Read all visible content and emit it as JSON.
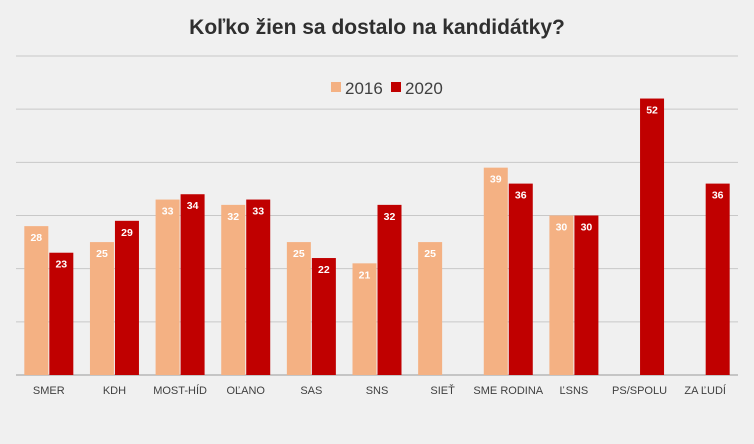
{
  "chart_data": {
    "type": "bar",
    "title": "Koľko žien sa dostalo na kandidátky?",
    "xlabel": "",
    "ylabel": "",
    "categories": [
      "SMER",
      "KDH",
      "MOST-HÍD",
      "OĽANO",
      "SAS",
      "SNS",
      "SIEŤ",
      "SME RODINA",
      "ĽSNS",
      "PS/SPOLU",
      "ZA ĽUDÍ"
    ],
    "series": [
      {
        "name": "2016",
        "color": "#f4b183",
        "values": [
          28,
          25,
          33,
          32,
          25,
          21,
          25,
          39,
          30,
          null,
          null
        ]
      },
      {
        "name": "2020",
        "color": "#c00000",
        "values": [
          23,
          29,
          34,
          33,
          22,
          32,
          null,
          36,
          30,
          52,
          36
        ]
      }
    ],
    "ylim": [
      0,
      60
    ],
    "grid": true,
    "legend": "top-center"
  }
}
